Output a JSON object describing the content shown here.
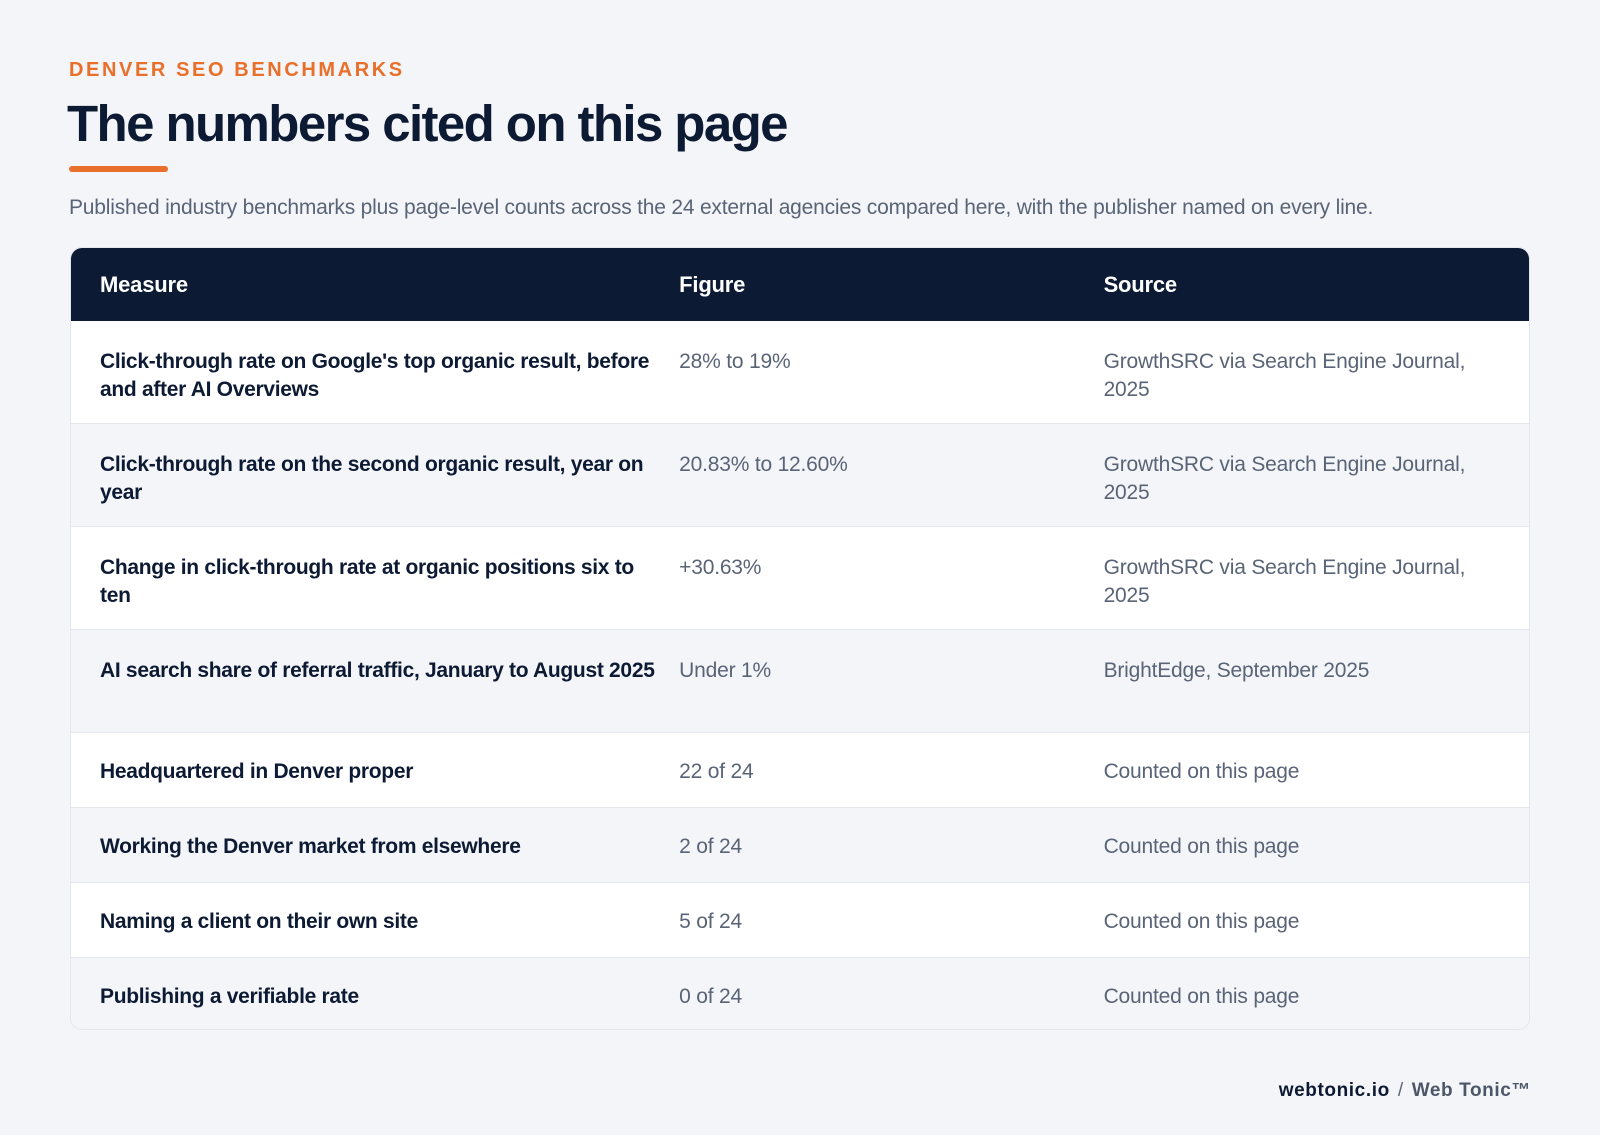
{
  "eyebrow": "DENVER SEO BENCHMARKS",
  "title": "The numbers cited on this page",
  "subtitle": "Published industry benchmarks plus page-level counts across the 24 external agencies compared here, with the publisher named on every line.",
  "table": {
    "headers": {
      "measure": "Measure",
      "figure": "Figure",
      "source": "Source"
    },
    "rows": [
      {
        "measure": "Click-through rate on Google's top organic result, before and after AI Overviews",
        "figure": "28% to 19%",
        "source": "GrowthSRC via Search Engine Journal, 2025"
      },
      {
        "measure": "Click-through rate on the second organic result, year on year",
        "figure": "20.83% to 12.60%",
        "source": "GrowthSRC via Search Engine Journal, 2025"
      },
      {
        "measure": "Change in click-through rate at organic positions six to ten",
        "figure": "+30.63%",
        "source": "GrowthSRC via Search Engine Journal, 2025"
      },
      {
        "measure": "AI search share of referral traffic, January to August 2025",
        "figure": "Under 1%",
        "source": "BrightEdge, September 2025"
      },
      {
        "measure": "Headquartered in Denver proper",
        "figure": "22 of 24",
        "source": "Counted on this page"
      },
      {
        "measure": "Working the Denver market from elsewhere",
        "figure": "2 of 24",
        "source": "Counted on this page"
      },
      {
        "measure": "Naming a client on their own site",
        "figure": "5 of 24",
        "source": "Counted on this page"
      },
      {
        "measure": "Publishing a verifiable rate",
        "figure": "0 of 24",
        "source": "Counted on this page"
      }
    ]
  },
  "footer": {
    "domain": "webtonic.io",
    "separator": "/",
    "brand": "Web Tonic™"
  },
  "colors": {
    "accent": "#e8702a",
    "header_bg": "#0c1a34",
    "text_dark": "#0d1a33",
    "text_muted": "#5a6477",
    "row_alt": "#f3f5f8",
    "page_bg": "#f4f5f8"
  }
}
